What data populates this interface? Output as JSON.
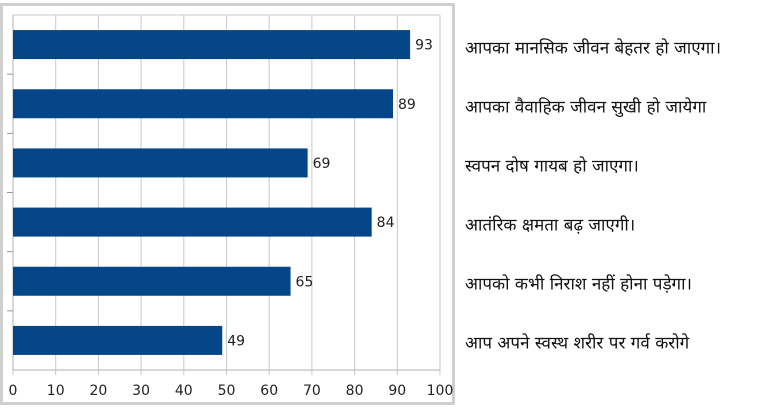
{
  "chart_data": {
    "type": "bar",
    "orientation": "horizontal",
    "title": "",
    "xlabel": "",
    "ylabel": "",
    "xlim": [
      0,
      100
    ],
    "xticks": [
      0,
      10,
      20,
      30,
      40,
      50,
      60,
      70,
      80,
      90,
      100
    ],
    "grid": true,
    "color": "#044687",
    "categories": [
      "आपका मानसिक जीवन बेहतर हो जाएगा।",
      "आपका वैवाहिक जीवन सुखी हो जायेगा",
      "स्वपन दोष गायब हो जाएगा।",
      "आतंरिक क्षमता बढ़ जाएगी।",
      "आपको कभी निराश नहीं होना पड़ेगा।",
      "आप अपने स्वस्थ शरीर पर गर्व करोगे"
    ],
    "values": [
      93,
      89,
      69,
      84,
      65,
      49
    ]
  }
}
